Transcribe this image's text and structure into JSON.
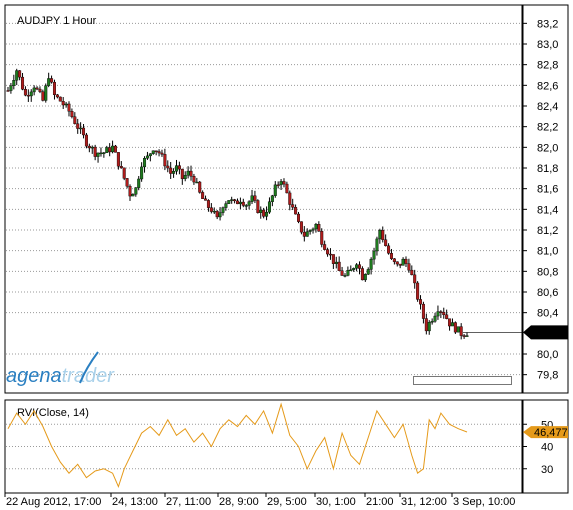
{
  "chart_data": [
    {
      "type": "candlestick",
      "title": "AUDJPY 1 Hour",
      "ylim": [
        79.7,
        83.3
      ],
      "yticks": [
        {
          "value": 83.2,
          "label": "83,2"
        },
        {
          "value": 83.0,
          "label": "83,0"
        },
        {
          "value": 82.8,
          "label": "82,8"
        },
        {
          "value": 82.6,
          "label": "82,6"
        },
        {
          "value": 82.4,
          "label": "82,4"
        },
        {
          "value": 82.2,
          "label": "82,2"
        },
        {
          "value": 82.0,
          "label": "82,0"
        },
        {
          "value": 81.8,
          "label": "81,8"
        },
        {
          "value": 81.6,
          "label": "81,6"
        },
        {
          "value": 81.4,
          "label": "81,4"
        },
        {
          "value": 81.2,
          "label": "81,2"
        },
        {
          "value": 81.0,
          "label": "81,0"
        },
        {
          "value": 80.8,
          "label": "80,8"
        },
        {
          "value": 80.6,
          "label": "80,6"
        },
        {
          "value": 80.4,
          "label": "80,4"
        },
        {
          "value": 80.0,
          "label": "80,0"
        },
        {
          "value": 79.8,
          "label": "79,8"
        }
      ],
      "last_price": {
        "value": 80.209,
        "label": "80,209"
      },
      "up_color": "#1e7a1e",
      "down_color": "#b01c1c",
      "grid": true,
      "path": [
        [
          0,
          82.55
        ],
        [
          3,
          82.75
        ],
        [
          6,
          82.5
        ],
        [
          9,
          82.6
        ],
        [
          12,
          82.45
        ],
        [
          14,
          82.7
        ],
        [
          16,
          82.5
        ],
        [
          18,
          82.45
        ],
        [
          21,
          82.35
        ],
        [
          24,
          82.2
        ],
        [
          27,
          82.05
        ],
        [
          30,
          81.95
        ],
        [
          33,
          81.95
        ],
        [
          36,
          82.0
        ],
        [
          38,
          81.85
        ],
        [
          40,
          81.7
        ],
        [
          42,
          81.55
        ],
        [
          44,
          81.6
        ],
        [
          46,
          81.85
        ],
        [
          48,
          81.9
        ],
        [
          50,
          82.0
        ],
        [
          52,
          81.95
        ],
        [
          54,
          81.85
        ],
        [
          56,
          81.75
        ],
        [
          58,
          81.8
        ],
        [
          60,
          81.7
        ],
        [
          62,
          81.75
        ],
        [
          64,
          81.7
        ],
        [
          66,
          81.55
        ],
        [
          68,
          81.45
        ],
        [
          70,
          81.4
        ],
        [
          72,
          81.3
        ],
        [
          74,
          81.45
        ],
        [
          76,
          81.5
        ],
        [
          78,
          81.45
        ],
        [
          80,
          81.5
        ],
        [
          82,
          81.45
        ],
        [
          84,
          81.5
        ],
        [
          86,
          81.4
        ],
        [
          88,
          81.35
        ],
        [
          90,
          81.45
        ],
        [
          92,
          81.6
        ],
        [
          94,
          81.7
        ],
        [
          96,
          81.55
        ],
        [
          98,
          81.4
        ],
        [
          100,
          81.25
        ],
        [
          102,
          81.15
        ],
        [
          104,
          81.2
        ],
        [
          106,
          81.25
        ],
        [
          108,
          81.1
        ],
        [
          110,
          81.0
        ],
        [
          112,
          80.9
        ],
        [
          114,
          80.8
        ],
        [
          116,
          80.75
        ],
        [
          118,
          80.8
        ],
        [
          120,
          80.9
        ],
        [
          122,
          80.75
        ],
        [
          124,
          80.85
        ],
        [
          126,
          81.0
        ],
        [
          128,
          81.2
        ],
        [
          130,
          81.05
        ],
        [
          132,
          80.9
        ],
        [
          134,
          80.85
        ],
        [
          136,
          80.9
        ],
        [
          138,
          80.85
        ],
        [
          140,
          80.65
        ],
        [
          142,
          80.45
        ],
        [
          144,
          80.25
        ],
        [
          146,
          80.35
        ],
        [
          148,
          80.45
        ],
        [
          150,
          80.4
        ],
        [
          152,
          80.3
        ],
        [
          154,
          80.25
        ],
        [
          156,
          80.2
        ],
        [
          158,
          80.21
        ]
      ],
      "x_tick_labels": [
        "22 Aug 2012, 17:00",
        "24, 13:00",
        "27, 11:00",
        "28, 9:00",
        "29, 5:00",
        "30, 1:00",
        "21:00",
        "31, 12:00",
        "3 Sep, 10:00"
      ]
    },
    {
      "type": "line",
      "title": "RVI(Close, 14)",
      "ylim": [
        20,
        60
      ],
      "yticks": [
        {
          "value": 50,
          "label": "50"
        },
        {
          "value": 40,
          "label": "40"
        },
        {
          "value": 30,
          "label": "30"
        }
      ],
      "last_value": {
        "value": 46.477,
        "label": "46,477"
      },
      "line_color": "#e59a1a",
      "path": [
        [
          0,
          48
        ],
        [
          3,
          55
        ],
        [
          6,
          50
        ],
        [
          9,
          56
        ],
        [
          12,
          49
        ],
        [
          15,
          40
        ],
        [
          18,
          33
        ],
        [
          21,
          28
        ],
        [
          24,
          32
        ],
        [
          27,
          26
        ],
        [
          30,
          29
        ],
        [
          33,
          30
        ],
        [
          36,
          28
        ],
        [
          38,
          22
        ],
        [
          40,
          30
        ],
        [
          43,
          38
        ],
        [
          46,
          46
        ],
        [
          49,
          49
        ],
        [
          52,
          45
        ],
        [
          55,
          52
        ],
        [
          58,
          45
        ],
        [
          61,
          48
        ],
        [
          64,
          42
        ],
        [
          67,
          46
        ],
        [
          70,
          40
        ],
        [
          73,
          48
        ],
        [
          76,
          52
        ],
        [
          79,
          49
        ],
        [
          82,
          54
        ],
        [
          85,
          50
        ],
        [
          88,
          56
        ],
        [
          91,
          46
        ],
        [
          94,
          59
        ],
        [
          97,
          45
        ],
        [
          100,
          40
        ],
        [
          103,
          30
        ],
        [
          106,
          38
        ],
        [
          109,
          44
        ],
        [
          112,
          30
        ],
        [
          115,
          46
        ],
        [
          118,
          36
        ],
        [
          121,
          32
        ],
        [
          124,
          44
        ],
        [
          127,
          56
        ],
        [
          130,
          50
        ],
        [
          133,
          44
        ],
        [
          136,
          50
        ],
        [
          139,
          36
        ],
        [
          141,
          28
        ],
        [
          143,
          30
        ],
        [
          145,
          52
        ],
        [
          147,
          48
        ],
        [
          149,
          55
        ],
        [
          152,
          50
        ],
        [
          155,
          48
        ],
        [
          158,
          46.5
        ]
      ]
    }
  ],
  "logo": {
    "text_left": "agena",
    "text_right": "trader"
  }
}
